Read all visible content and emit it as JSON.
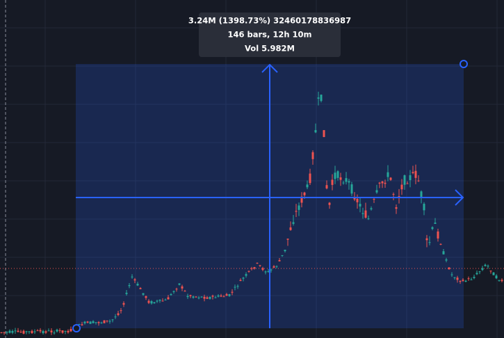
{
  "tooltip": {
    "line1": "3.24M (1398.73%) 32460178836987",
    "line2": "146 bars, 12h 10m",
    "line3": "Vol 5.982M"
  }
}
